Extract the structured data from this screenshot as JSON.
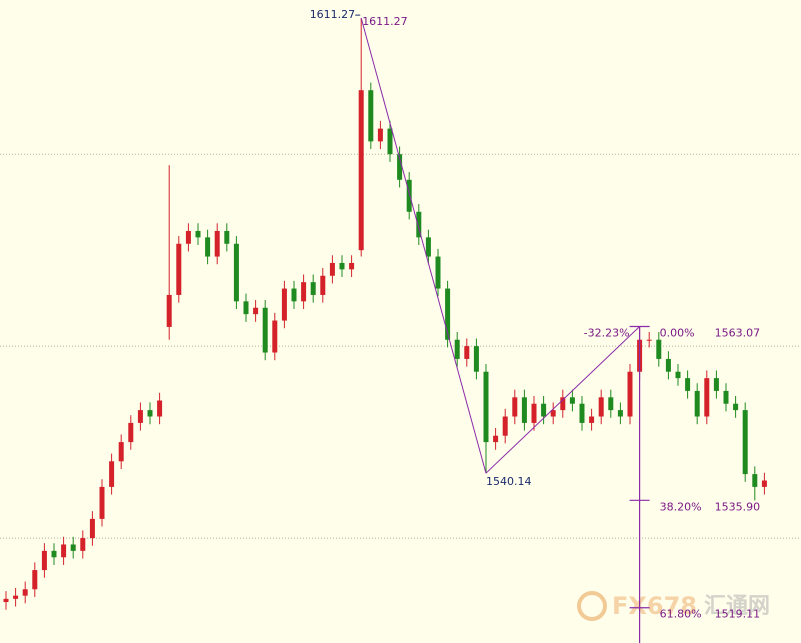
{
  "chart_data": {
    "type": "candlestick",
    "open": [
      1520,
      1520.5,
      1521,
      1522,
      1525,
      1528,
      1527,
      1529,
      1528,
      1530,
      1533,
      1538,
      1542,
      1545,
      1548,
      1550,
      1549,
      1563,
      1568,
      1576,
      1578,
      1577,
      1574,
      1578,
      1576,
      1567,
      1565,
      1566,
      1559,
      1564,
      1569,
      1567,
      1570,
      1568,
      1571,
      1573,
      1572,
      1575,
      1600,
      1592,
      1594,
      1590,
      1586,
      1581,
      1577,
      1574,
      1569,
      1561,
      1558,
      1560,
      1556,
      1545,
      1546,
      1549,
      1552,
      1548,
      1551,
      1549,
      1550,
      1552,
      1551,
      1548,
      1549,
      1552,
      1550,
      1549,
      1556,
      1561,
      1561,
      1558,
      1556,
      1555,
      1553,
      1549,
      1555,
      1553,
      1551,
      1550,
      1540,
      1538
    ],
    "high": [
      1521.7,
      1522.2,
      1523.2,
      1526.2,
      1529.2,
      1529.2,
      1530.2,
      1530.2,
      1531.2,
      1534.2,
      1539.2,
      1543.2,
      1546.2,
      1549.2,
      1551.2,
      1551.2,
      1552.7,
      1588.3,
      1577.2,
      1579.2,
      1579.2,
      1578.2,
      1579.2,
      1579.2,
      1577.2,
      1568.2,
      1567.2,
      1567.2,
      1565.2,
      1570.2,
      1570.2,
      1571.2,
      1571.2,
      1572.2,
      1574.2,
      1574.2,
      1574.2,
      1611.27,
      1601.2,
      1595.2,
      1595.2,
      1591.2,
      1587.2,
      1582.2,
      1578.2,
      1575.2,
      1570.2,
      1562.2,
      1561.2,
      1561.2,
      1557.2,
      1547.2,
      1550.2,
      1553.2,
      1553.2,
      1552.2,
      1552.2,
      1551.2,
      1553.2,
      1553.2,
      1552.2,
      1550.2,
      1553.2,
      1553.2,
      1551.2,
      1557.2,
      1563.07,
      1562.2,
      1562.2,
      1559.2,
      1557.2,
      1556.2,
      1554.2,
      1556.2,
      1556.2,
      1554.2,
      1552.2,
      1551.2,
      1541.2,
      1540.2
    ],
    "low": [
      1518.8,
      1519.3,
      1519.8,
      1520.8,
      1523.8,
      1525.8,
      1525.8,
      1526.8,
      1526.8,
      1528.8,
      1531.8,
      1536.8,
      1540.8,
      1543.8,
      1546.8,
      1547.8,
      1547.8,
      1561,
      1566.8,
      1574.8,
      1575.8,
      1572.8,
      1572.8,
      1574.8,
      1565.8,
      1563.8,
      1563.8,
      1557.8,
      1557.8,
      1562.8,
      1565.8,
      1565.8,
      1566.8,
      1566.8,
      1569.8,
      1570.8,
      1570.8,
      1574,
      1590.8,
      1590.8,
      1588.8,
      1584.8,
      1579.8,
      1575.8,
      1572.8,
      1567.8,
      1559.8,
      1556.8,
      1556.8,
      1554.8,
      1540.14,
      1543.8,
      1544.8,
      1547.8,
      1546.8,
      1546.8,
      1547.8,
      1547.8,
      1548.8,
      1549.8,
      1546.8,
      1546.8,
      1547.8,
      1548.8,
      1547.8,
      1547.8,
      1554.8,
      1559.8,
      1556.8,
      1554.8,
      1553.8,
      1551.8,
      1547.8,
      1547.8,
      1551.8,
      1549.8,
      1548.8,
      1538.8,
      1535.9,
      1536.8
    ],
    "close": [
      1520.5,
      1521,
      1522,
      1525,
      1528,
      1527,
      1529,
      1528,
      1530,
      1533,
      1538,
      1542,
      1545,
      1548,
      1550,
      1549,
      1551.5,
      1568,
      1576,
      1578,
      1577,
      1574,
      1578,
      1576,
      1567,
      1565,
      1566,
      1559,
      1564,
      1569,
      1567,
      1570,
      1568,
      1571,
      1573,
      1572,
      1573,
      1600,
      1592,
      1594,
      1590,
      1586,
      1581,
      1577,
      1574,
      1569,
      1561,
      1558,
      1560,
      1556,
      1545,
      1546,
      1549,
      1552,
      1548,
      1551,
      1549,
      1550,
      1552,
      1551,
      1548,
      1549,
      1552,
      1550,
      1549,
      1556,
      1561,
      1561,
      1558,
      1556,
      1555,
      1553,
      1549,
      1555,
      1553,
      1551,
      1550,
      1540,
      1538,
      1539
    ],
    "up_color": "#d4212a",
    "down_color": "#1f8a1f",
    "ylim": [
      1513.6,
      1614.1
    ],
    "yticks": [
      1530,
      1560,
      1590
    ],
    "grid": true,
    "fib": {
      "prices": [
        1563.07,
        1535.9,
        1519.11
      ],
      "value_labels": [
        "1563.07",
        "1535.90",
        "1519.11"
      ],
      "levels": [
        "0.00%",
        "38.20%",
        "61.80%"
      ],
      "extension_label": "-32.23%",
      "color": "#8a2aa8"
    },
    "watermark": [
      "FX678",
      "汇通网"
    ]
  }
}
